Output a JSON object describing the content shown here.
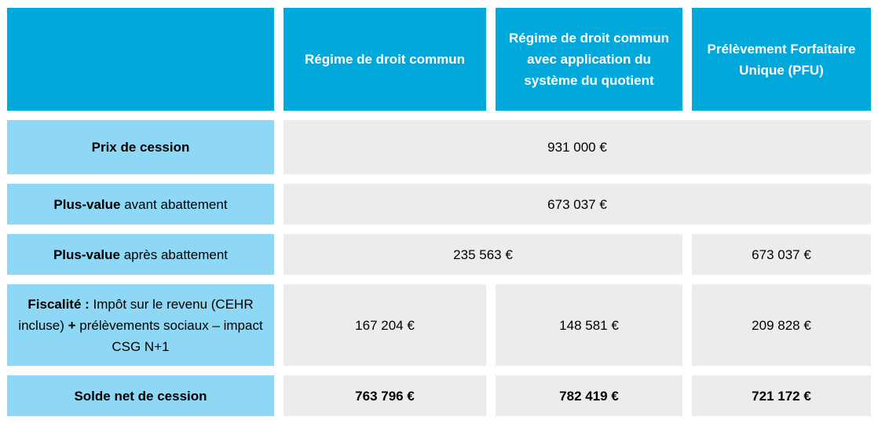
{
  "table": {
    "headers": [
      "Régime de droit commun",
      "Régime de droit commun avec application du système du quotient",
      "Prélèvement Forfaitaire Unique (PFU)"
    ],
    "rows": [
      {
        "label": [
          {
            "text": "Prix de  cession",
            "bold": true
          }
        ],
        "cells": [
          "931 000 €"
        ],
        "bold": false
      },
      {
        "label": [
          {
            "text": "Plus-value",
            "bold": true
          },
          {
            "text": " avant abattement",
            "bold": false
          }
        ],
        "cells": [
          "673 037 €"
        ],
        "bold": false
      },
      {
        "label": [
          {
            "text": "Plus-value",
            "bold": true
          },
          {
            "text": " après abattement",
            "bold": false
          }
        ],
        "cells": [
          "235 563 €",
          "673 037 €"
        ],
        "bold": false
      },
      {
        "label": [
          {
            "text": "Fiscalité :",
            "bold": true
          },
          {
            "text": " Impôt sur le revenu (CEHR incluse) ",
            "bold": false
          },
          {
            "text": "+",
            "bold": true
          },
          {
            "text": " prélèvements sociaux – impact CSG N+1",
            "bold": false
          }
        ],
        "cells": [
          "167 204 €",
          "148 581 €",
          "209 828 €"
        ],
        "bold": false
      },
      {
        "label": [
          {
            "text": "Solde net de cession",
            "bold": true
          }
        ],
        "cells": [
          "763 796 €",
          "782 419 €",
          "721 172 €"
        ],
        "bold": true
      }
    ]
  }
}
